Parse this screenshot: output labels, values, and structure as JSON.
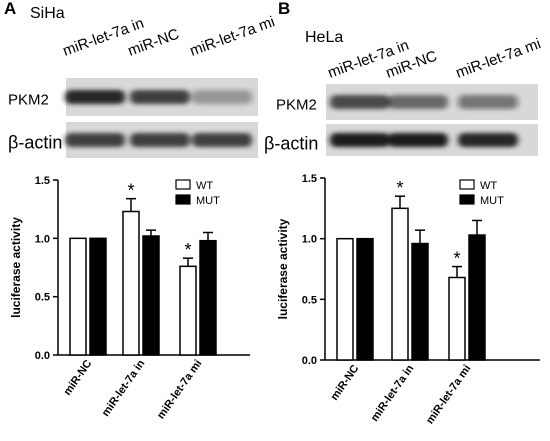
{
  "panels": [
    {
      "label": "A",
      "cell_line": "SiHa",
      "lanes": [
        "miR-let-7a in",
        "miR-NC",
        "miR-let-7a mi"
      ],
      "rows": [
        "PKM2",
        "β-actin"
      ]
    },
    {
      "label": "B",
      "cell_line": "HeLa",
      "lanes": [
        "miR-let-7a in",
        "miR-NC",
        "miR-let-7a mi"
      ],
      "rows": [
        "PKM2",
        "β-actin"
      ]
    }
  ],
  "chart_data": [
    {
      "type": "bar",
      "y_label": "luciferase activity",
      "categories": [
        "miR-NC",
        "miR-let-7a in",
        "miR-let-7a mi"
      ],
      "series": [
        {
          "name": "WT",
          "color": "#ffffff",
          "values": [
            1.0,
            1.23,
            0.76
          ],
          "errors": [
            0,
            0.11,
            0.07
          ]
        },
        {
          "name": "MUT",
          "color": "#000000",
          "values": [
            1.0,
            1.02,
            0.98
          ],
          "errors": [
            0,
            0.05,
            0.07
          ]
        }
      ],
      "annotations": [
        {
          "text": "*",
          "category": "miR-let-7a in",
          "series": "WT"
        },
        {
          "text": "*",
          "category": "miR-let-7a mi",
          "series": "WT"
        }
      ],
      "ylim": [
        0,
        1.5
      ],
      "yticks": [
        {
          "value": 0,
          "label": "0.0"
        },
        {
          "value": 0.5,
          "label": "0.5"
        },
        {
          "value": 1,
          "label": "1.0"
        },
        {
          "value": 1.5,
          "label": "1.5"
        }
      ],
      "legend": "top-right"
    },
    {
      "type": "bar",
      "y_label": "luciferase activity",
      "categories": [
        "miR-NC",
        "miR-let-7a in",
        "miR-let-7a mi"
      ],
      "series": [
        {
          "name": "WT",
          "color": "#ffffff",
          "values": [
            1.0,
            1.25,
            0.68
          ],
          "errors": [
            0,
            0.1,
            0.09
          ]
        },
        {
          "name": "MUT",
          "color": "#000000",
          "values": [
            1.0,
            0.96,
            1.03
          ],
          "errors": [
            0,
            0.11,
            0.12
          ]
        }
      ],
      "annotations": [
        {
          "text": "*",
          "category": "miR-let-7a in",
          "series": "WT"
        },
        {
          "text": "*",
          "category": "miR-let-7a mi",
          "series": "WT"
        }
      ],
      "ylim": [
        0,
        1.5
      ],
      "yticks": [
        {
          "value": 0,
          "label": "0.0"
        },
        {
          "value": 0.5,
          "label": "0.5"
        },
        {
          "value": 1,
          "label": "1.0"
        },
        {
          "value": 1.5,
          "label": "1.5"
        }
      ],
      "legend": "top-right"
    }
  ]
}
